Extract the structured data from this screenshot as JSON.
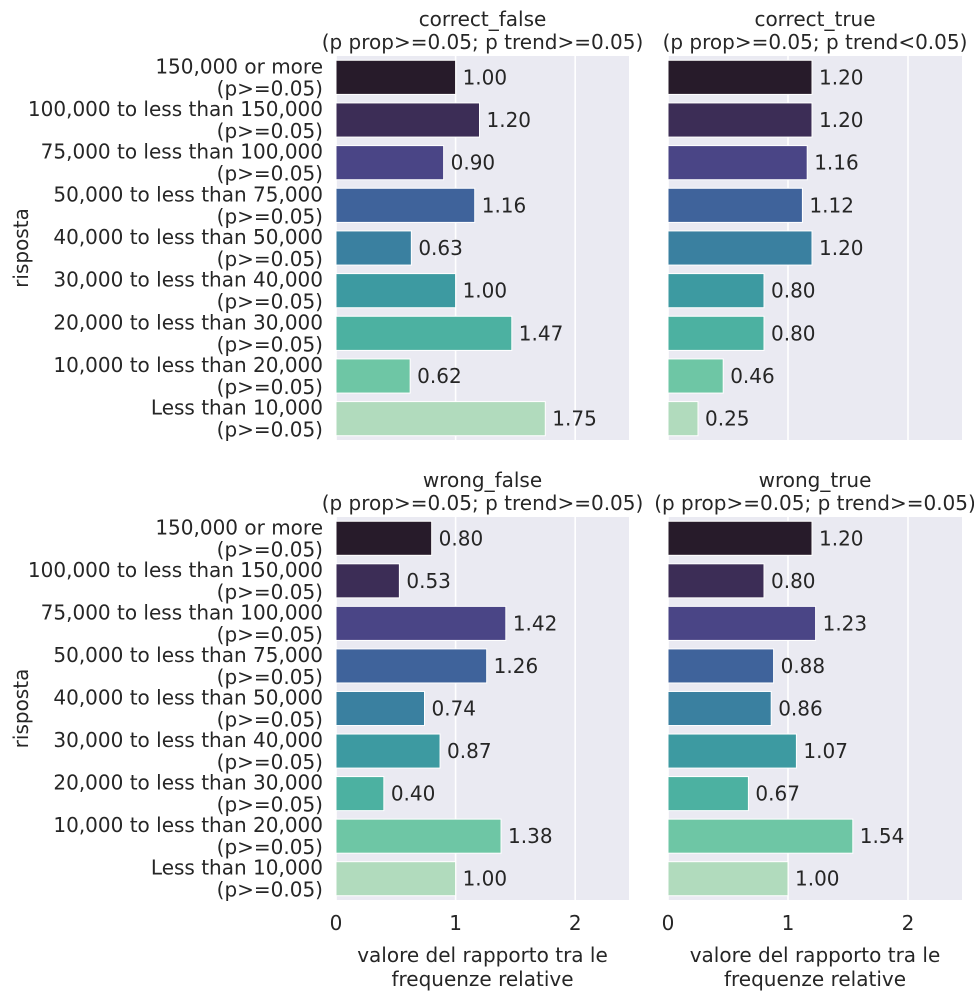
{
  "chart_data": [
    {
      "type": "bar",
      "orientation": "horizontal",
      "title": "correct_false\n(p prop>=0.05; p trend>=0.05)",
      "categories": [
        "150,000 or more\n(p>=0.05)",
        "100,000 to less than 150,000\n(p>=0.05)",
        "75,000 to less than 100,000\n(p>=0.05)",
        "50,000 to less than 75,000\n(p>=0.05)",
        "40,000 to less than 50,000\n(p>=0.05)",
        "30,000 to less than 40,000\n(p>=0.05)",
        "20,000 to less than 30,000\n(p>=0.05)",
        "10,000 to less than 20,000\n(p>=0.05)",
        "Less than 10,000\n(p>=0.05)"
      ],
      "values": [
        1.0,
        1.2,
        0.9,
        1.16,
        0.63,
        1.0,
        1.47,
        0.62,
        1.75
      ],
      "value_labels": [
        "1.00",
        "1.20",
        "0.90",
        "1.16",
        "0.63",
        "1.00",
        "1.47",
        "0.62",
        "1.75"
      ],
      "ylabel": "risposta",
      "xlabel": "",
      "xlim": [
        0,
        2.45
      ],
      "xticks": [
        0,
        1,
        2
      ],
      "show_xticks": false,
      "show_yticks": true
    },
    {
      "type": "bar",
      "orientation": "horizontal",
      "title": "correct_true\n(p prop>=0.05; p trend<0.05)",
      "categories": [
        "150,000 or more\n(p>=0.05)",
        "100,000 to less than 150,000\n(p>=0.05)",
        "75,000 to less than 100,000\n(p>=0.05)",
        "50,000 to less than 75,000\n(p>=0.05)",
        "40,000 to less than 50,000\n(p>=0.05)",
        "30,000 to less than 40,000\n(p>=0.05)",
        "20,000 to less than 30,000\n(p>=0.05)",
        "10,000 to less than 20,000\n(p>=0.05)",
        "Less than 10,000\n(p>=0.05)"
      ],
      "values": [
        1.2,
        1.2,
        1.16,
        1.12,
        1.2,
        0.8,
        0.8,
        0.46,
        0.25
      ],
      "value_labels": [
        "1.20",
        "1.20",
        "1.16",
        "1.12",
        "1.20",
        "0.80",
        "0.80",
        "0.46",
        "0.25"
      ],
      "ylabel": "",
      "xlabel": "",
      "xlim": [
        0,
        2.45
      ],
      "xticks": [
        0,
        1,
        2
      ],
      "show_xticks": false,
      "show_yticks": false
    },
    {
      "type": "bar",
      "orientation": "horizontal",
      "title": "wrong_false\n(p prop>=0.05; p trend>=0.05)",
      "categories": [
        "150,000 or more\n(p>=0.05)",
        "100,000 to less than 150,000\n(p>=0.05)",
        "75,000 to less than 100,000\n(p>=0.05)",
        "50,000 to less than 75,000\n(p>=0.05)",
        "40,000 to less than 50,000\n(p>=0.05)",
        "30,000 to less than 40,000\n(p>=0.05)",
        "20,000 to less than 30,000\n(p>=0.05)",
        "10,000 to less than 20,000\n(p>=0.05)",
        "Less than 10,000\n(p>=0.05)"
      ],
      "values": [
        0.8,
        0.53,
        1.42,
        1.26,
        0.74,
        0.87,
        0.4,
        1.38,
        1.0
      ],
      "value_labels": [
        "0.80",
        "0.53",
        "1.42",
        "1.26",
        "0.74",
        "0.87",
        "0.40",
        "1.38",
        "1.00"
      ],
      "ylabel": "risposta",
      "xlabel": "valore del rapporto tra le\nfrequenze relative",
      "xlim": [
        0,
        2.45
      ],
      "xticks": [
        0,
        1,
        2
      ],
      "show_xticks": true,
      "show_yticks": true
    },
    {
      "type": "bar",
      "orientation": "horizontal",
      "title": "wrong_true\n(p prop>=0.05; p trend>=0.05)",
      "categories": [
        "150,000 or more\n(p>=0.05)",
        "100,000 to less than 150,000\n(p>=0.05)",
        "75,000 to less than 100,000\n(p>=0.05)",
        "50,000 to less than 75,000\n(p>=0.05)",
        "40,000 to less than 50,000\n(p>=0.05)",
        "30,000 to less than 40,000\n(p>=0.05)",
        "20,000 to less than 30,000\n(p>=0.05)",
        "10,000 to less than 20,000\n(p>=0.05)",
        "Less than 10,000\n(p>=0.05)"
      ],
      "values": [
        1.2,
        0.8,
        1.23,
        0.88,
        0.86,
        1.07,
        0.67,
        1.54,
        1.0
      ],
      "value_labels": [
        "1.20",
        "0.80",
        "1.23",
        "0.88",
        "0.86",
        "1.07",
        "0.67",
        "1.54",
        "1.00"
      ],
      "ylabel": "",
      "xlabel": "valore del rapporto tra le\nfrequenze relative",
      "xlim": [
        0,
        2.45
      ],
      "xticks": [
        0,
        1,
        2
      ],
      "show_xticks": true,
      "show_yticks": false
    }
  ],
  "colors": {
    "panel_background": "#eaeaf2",
    "grid": "#ffffff",
    "text": "#262626",
    "bar_palette": [
      "#271b2a",
      "#3c2d56",
      "#4a4586",
      "#3f639b",
      "#3a80a0",
      "#3d9aa1",
      "#4cb1a1",
      "#6ec6a5",
      "#b1dbbd"
    ]
  }
}
